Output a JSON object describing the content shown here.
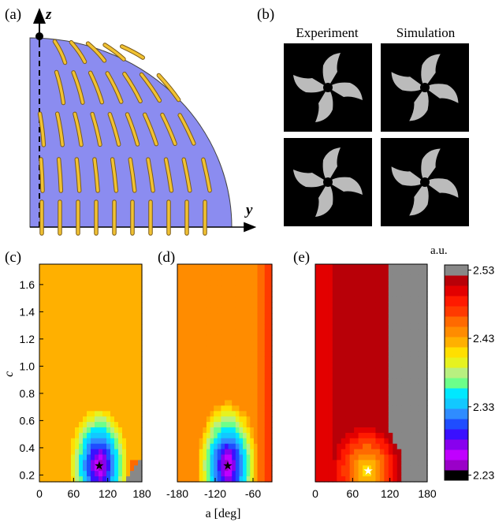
{
  "panel_labels": {
    "a": "(a)",
    "b": "(b)",
    "c": "(c)",
    "d": "(d)",
    "e": "(e)"
  },
  "panel_a": {
    "z_axis": "z",
    "y_axis": "y",
    "fill_color": "#8b8cf0",
    "rod_color": "#f1c232"
  },
  "panel_b": {
    "col_labels": [
      "Experiment",
      "Simulation"
    ]
  },
  "colorbar": {
    "unit": "a.u.",
    "tick_labels": [
      "2.53",
      "2.43",
      "2.33",
      "2.23"
    ],
    "colors": [
      "#000000",
      "#9a00c8",
      "#c000ff",
      "#8800ee",
      "#3a10ff",
      "#1f4dff",
      "#2f8cff",
      "#12c8ff",
      "#00e8ff",
      "#6cff8a",
      "#b8f080",
      "#e6f220",
      "#ffdf00",
      "#ffb000",
      "#ff8c00",
      "#ff6a00",
      "#ff3a00",
      "#ff1a00",
      "#e30000",
      "#b80008",
      "#888888"
    ]
  },
  "chart_data": [
    {
      "type": "heatmap",
      "panel": "(c)",
      "xlabel": "",
      "ylabel": "c",
      "xlim": [
        0,
        180
      ],
      "ylim": [
        0.15,
        1.75
      ],
      "x_ticks": [
        "0",
        "60",
        "120",
        "180"
      ],
      "y_ticks": [
        "0.2",
        "0.4",
        "0.6",
        "0.8",
        "1.0",
        "1.2",
        "1.4",
        "1.6"
      ],
      "minimum_marker": {
        "a": 105,
        "c": 0.27
      }
    },
    {
      "type": "heatmap",
      "panel": "(d)",
      "xlabel": "a [deg]",
      "ylabel": "",
      "xlim": [
        -180,
        -30
      ],
      "x_ticks": [
        "-180",
        "-120",
        "-60"
      ],
      "minimum_marker": {
        "a": -100,
        "c": 0.27
      }
    },
    {
      "type": "heatmap",
      "panel": "(e)",
      "xlabel": "",
      "ylabel": "",
      "xlim": [
        0,
        180
      ],
      "x_ticks": [
        "0",
        "60",
        "120",
        "180"
      ],
      "minimum_marker": {
        "a": 85,
        "c": 0.23
      }
    }
  ]
}
